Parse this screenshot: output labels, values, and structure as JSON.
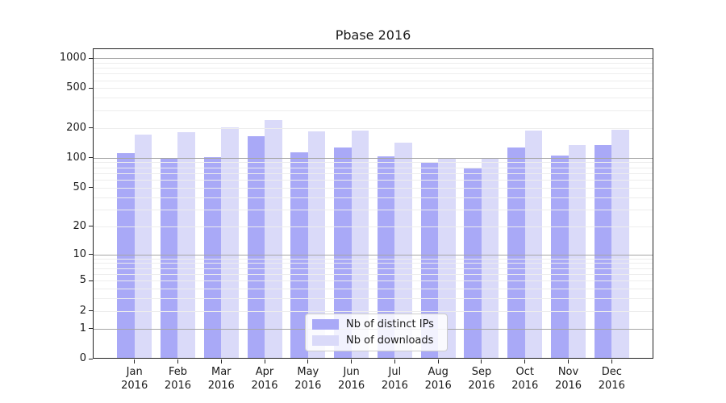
{
  "title": "Pbase 2016",
  "chart_data": {
    "type": "bar",
    "title": "Pbase 2016",
    "categories": [
      "Jan 2016",
      "Feb 2016",
      "Mar 2016",
      "Apr 2016",
      "May 2016",
      "Jun 2016",
      "Jul 2016",
      "Aug 2016",
      "Sep 2016",
      "Oct 2016",
      "Nov 2016",
      "Dec 2016"
    ],
    "series": [
      {
        "name": "Nb of distinct IPs",
        "color": "#a9a9f7",
        "values": [
          111,
          100,
          102,
          166,
          113,
          128,
          104,
          89,
          79,
          128,
          105,
          134
        ]
      },
      {
        "name": "Nb of downloads",
        "color": "#dadaf9",
        "values": [
          170,
          180,
          203,
          240,
          186,
          188,
          143,
          100,
          97,
          187,
          134,
          190
        ]
      }
    ],
    "yscale": "log1p",
    "yticks": [
      0,
      1,
      2,
      5,
      10,
      20,
      50,
      100,
      200,
      500,
      1000
    ],
    "ylim": [
      0,
      1250
    ],
    "xlabel": "",
    "ylabel": "",
    "grid": true,
    "legend_position": "lower center"
  },
  "colors": {
    "bar_ips": "#a9a9f7",
    "bar_downloads": "#dadaf9",
    "grid_minor": "#ededed",
    "grid_major": "#a6a6a6",
    "spine": "#222222",
    "text": "#1a1a1a",
    "legend_border": "#cccccc",
    "legend_bg": "rgba(255,255,255,0.85)"
  }
}
